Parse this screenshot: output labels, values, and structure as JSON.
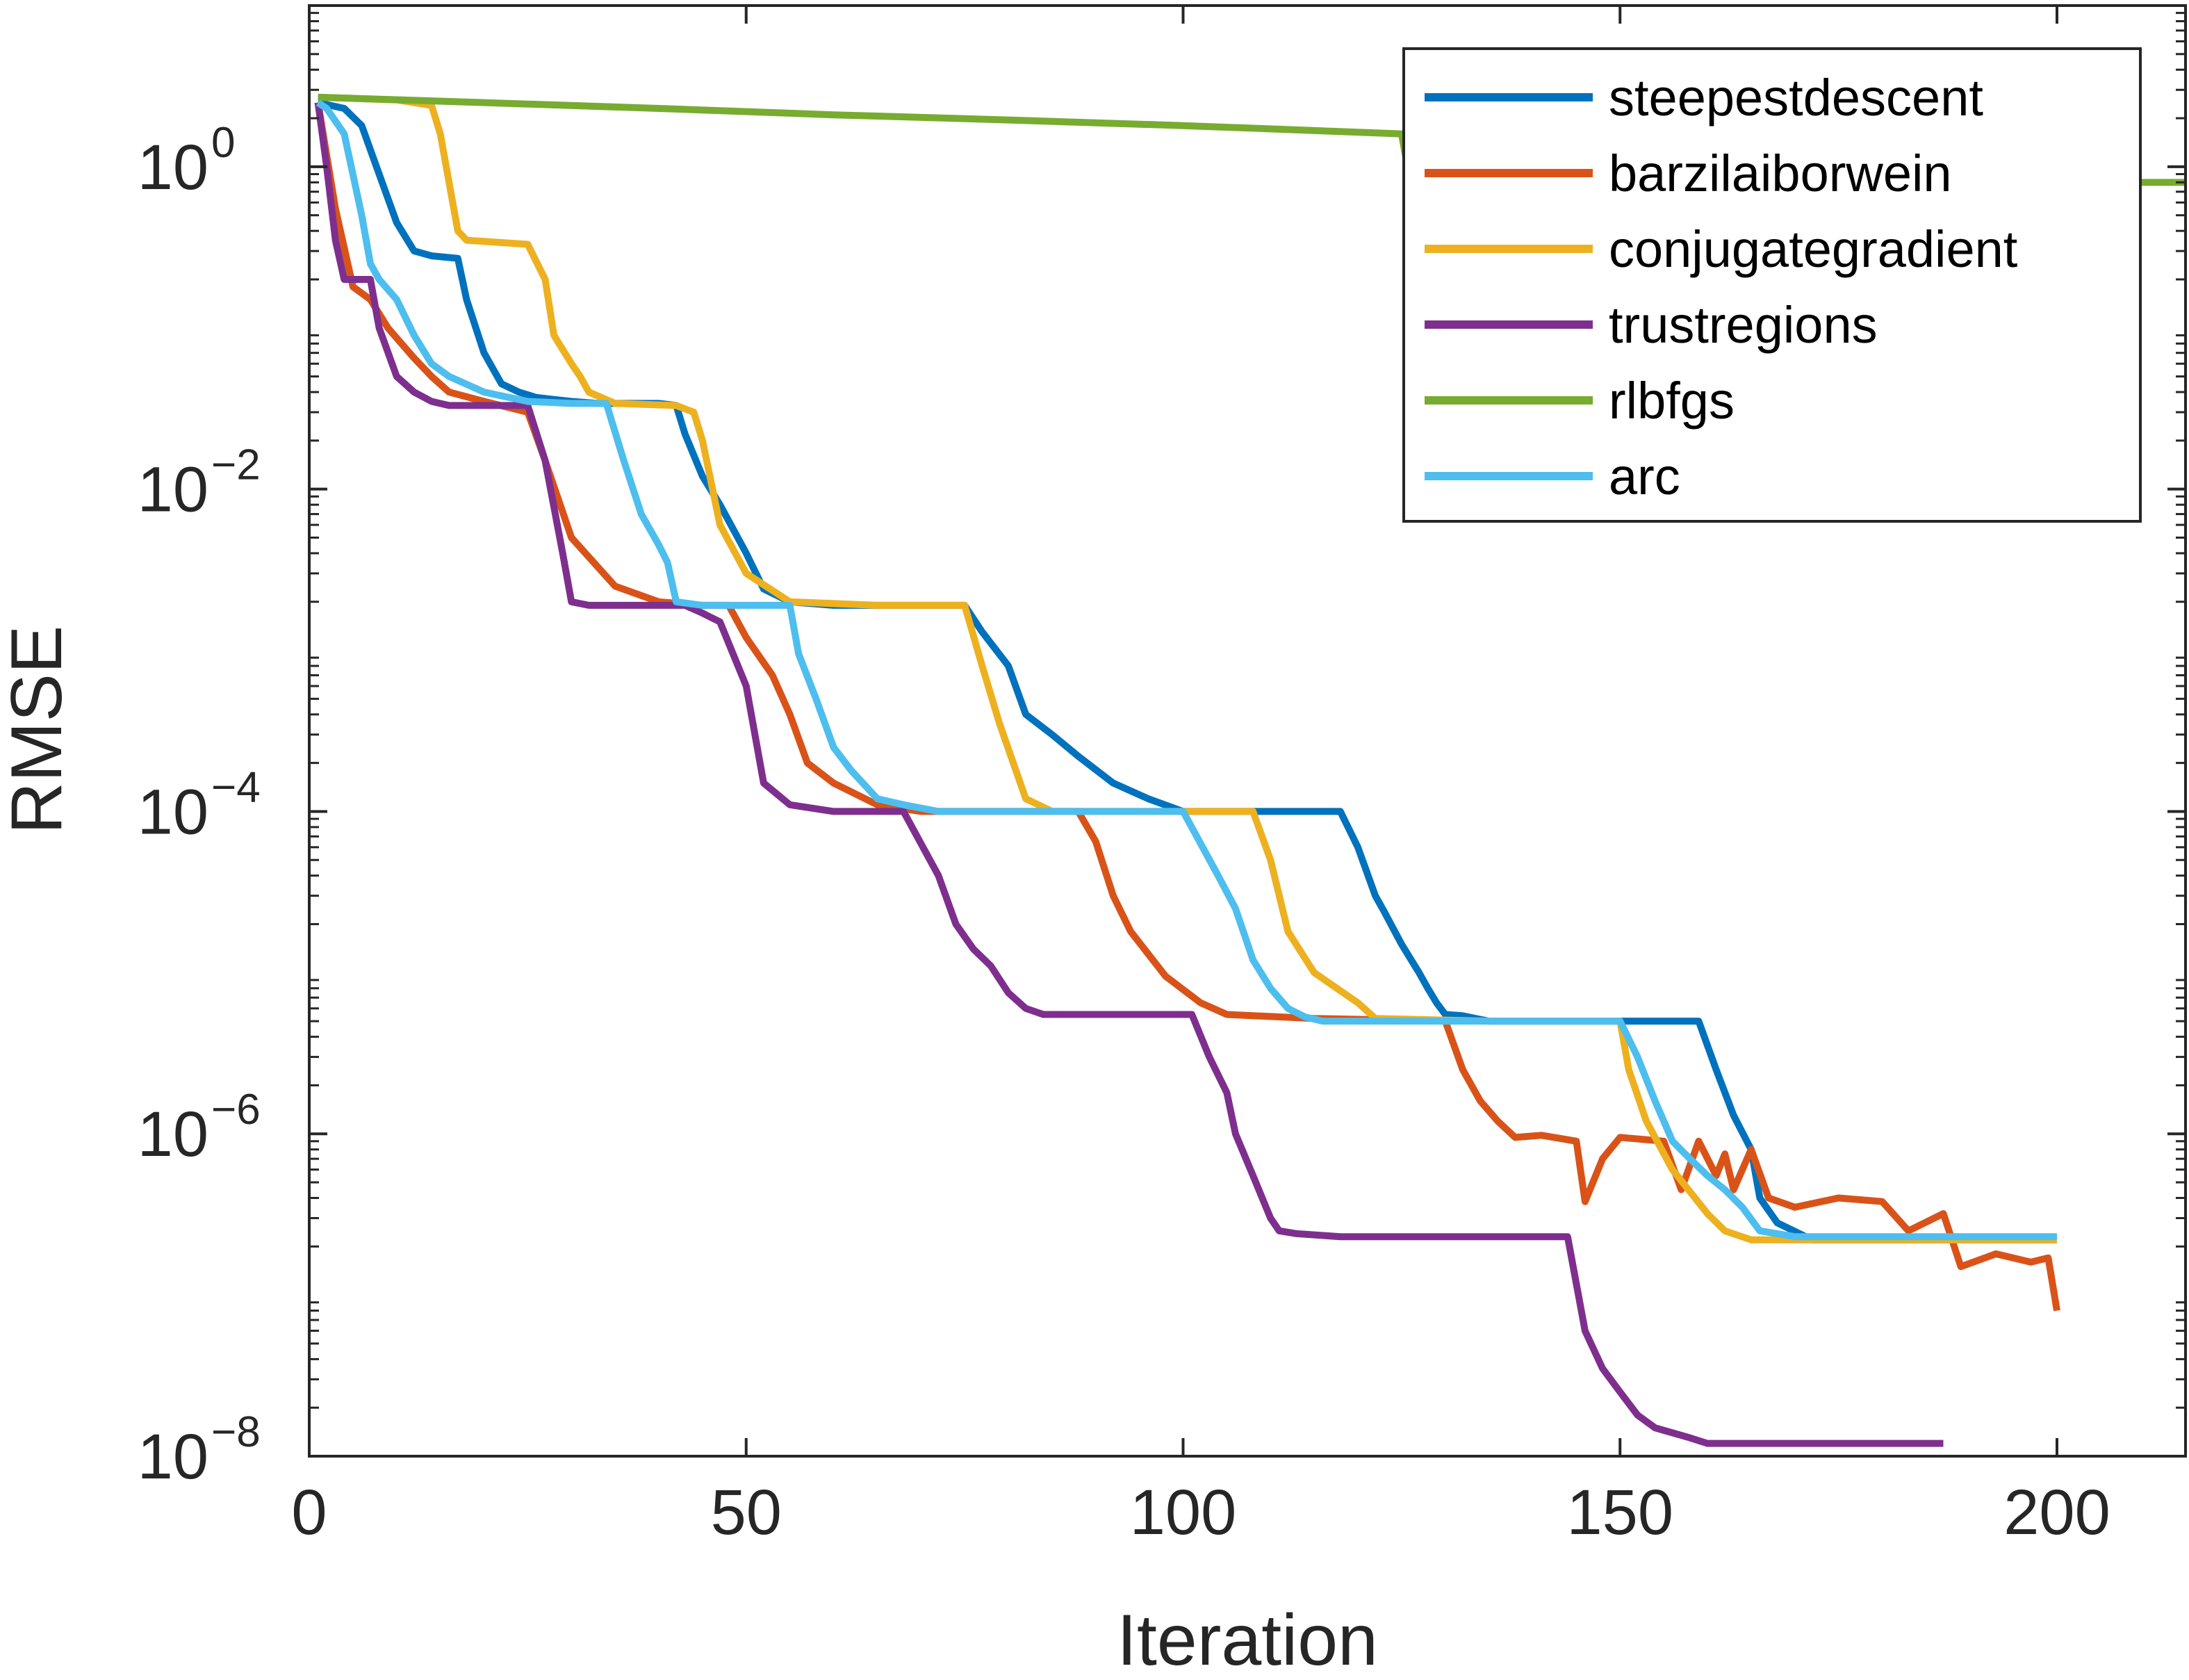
{
  "chart_data": {
    "type": "line",
    "title": "",
    "xlabel": "Iteration",
    "ylabel": "RMSE",
    "xscale": "linear",
    "yscale": "log",
    "xlim": [
      0,
      215
    ],
    "ylim": [
      1e-08,
      10
    ],
    "xticks": [
      0,
      50,
      100,
      150,
      200
    ],
    "xtick_labels": [
      "0",
      "50",
      "100",
      "150",
      "200"
    ],
    "yticks": [
      1e-08,
      1e-06,
      0.0001,
      0.01,
      1
    ],
    "ytick_labels": [
      {
        "base": "10",
        "exp": "−8"
      },
      {
        "base": "10",
        "exp": "−6"
      },
      {
        "base": "10",
        "exp": "−4"
      },
      {
        "base": "10",
        "exp": "−2"
      },
      {
        "base": "10",
        "exp": "0"
      }
    ],
    "grid": false,
    "legend_position": "top-right",
    "series": [
      {
        "name": "steepestdescent",
        "color": "#0072BD",
        "x": [
          1,
          4,
          6,
          8,
          10,
          12,
          14,
          17,
          18,
          20,
          22,
          24,
          26,
          28,
          30,
          33,
          40,
          42,
          43,
          45,
          47,
          50,
          52,
          55,
          60,
          68,
          71,
          75,
          77,
          80,
          82,
          85,
          88,
          92,
          96,
          100,
          105,
          110,
          115,
          118,
          120,
          122,
          123,
          125,
          127,
          128,
          129,
          130,
          132,
          135,
          145,
          155,
          159,
          161,
          163,
          165,
          166,
          168,
          172,
          200
        ],
        "y": [
          2.5,
          2.3,
          1.8,
          0.9,
          0.45,
          0.3,
          0.28,
          0.27,
          0.15,
          0.07,
          0.045,
          0.04,
          0.037,
          0.036,
          0.035,
          0.034,
          0.034,
          0.033,
          0.022,
          0.012,
          0.008,
          0.004,
          0.0024,
          0.002,
          0.0019,
          0.0019,
          0.0019,
          0.0019,
          0.0013,
          0.0008,
          0.0004,
          0.0003,
          0.00022,
          0.00015,
          0.00012,
          0.0001,
          0.0001,
          0.0001,
          0.0001,
          0.0001,
          6e-05,
          3e-05,
          2.4e-05,
          1.5e-05,
          1e-05,
          8e-06,
          6.5e-06,
          5.5e-06,
          5.4e-06,
          5e-06,
          5e-06,
          5e-06,
          5e-06,
          2.5e-06,
          1.3e-06,
          8e-07,
          4e-07,
          2.8e-07,
          2.2e-07,
          2.2e-07
        ]
      },
      {
        "name": "barzilaiborwein",
        "color": "#D95319",
        "x": [
          1,
          3,
          5,
          7,
          9,
          12,
          14,
          16,
          20,
          25,
          27,
          30,
          35,
          40,
          45,
          48,
          50,
          53,
          55,
          57,
          60,
          65,
          70,
          80,
          88,
          90,
          92,
          94,
          98,
          102,
          105,
          115,
          130,
          132,
          134,
          136,
          138,
          141,
          145,
          146,
          148,
          150,
          155,
          157,
          159,
          161,
          162,
          163,
          165,
          167,
          170,
          175,
          180,
          183,
          187,
          189,
          193,
          197,
          199,
          200
        ],
        "y": [
          2.5,
          0.55,
          0.18,
          0.15,
          0.1,
          0.065,
          0.05,
          0.04,
          0.035,
          0.03,
          0.015,
          0.005,
          0.0025,
          0.002,
          0.0019,
          0.0019,
          0.0012,
          0.0007,
          0.0004,
          0.0002,
          0.00015,
          0.00011,
          0.0001,
          0.0001,
          0.0001,
          6.5e-05,
          3e-05,
          1.8e-05,
          9.5e-06,
          6.5e-06,
          5.5e-06,
          5.2e-06,
          5e-06,
          2.5e-06,
          1.6e-06,
          1.2e-06,
          9.5e-07,
          9.8e-07,
          9e-07,
          3.8e-07,
          7e-07,
          9.5e-07,
          9e-07,
          4.5e-07,
          9e-07,
          5.5e-07,
          7.5e-07,
          4.5e-07,
          8e-07,
          4e-07,
          3.5e-07,
          4e-07,
          3.8e-07,
          2.5e-07,
          3.2e-07,
          1.5e-07,
          1.8e-07,
          1.6e-07,
          1.7e-07,
          8e-08
        ]
      },
      {
        "name": "conjugategradient",
        "color": "#EDB120",
        "x": [
          1,
          10,
          14,
          15,
          16,
          17,
          18,
          25,
          27,
          28,
          30,
          31,
          32,
          35,
          42,
          44,
          45,
          47,
          50,
          55,
          65,
          75,
          77,
          79,
          82,
          85,
          108,
          110,
          112,
          115,
          120,
          122,
          135,
          150,
          151,
          153,
          156,
          160,
          162,
          165,
          200
        ],
        "y": [
          2.7,
          2.6,
          2.4,
          1.6,
          0.8,
          0.4,
          0.35,
          0.33,
          0.2,
          0.09,
          0.06,
          0.05,
          0.04,
          0.034,
          0.033,
          0.03,
          0.02,
          0.006,
          0.003,
          0.002,
          0.0019,
          0.0019,
          0.0008,
          0.00035,
          0.00012,
          0.0001,
          0.0001,
          5e-05,
          1.8e-05,
          1e-05,
          6.5e-06,
          5.2e-06,
          5e-06,
          5e-06,
          2.5e-06,
          1.2e-06,
          6e-07,
          3.2e-07,
          2.5e-07,
          2.2e-07,
          2.2e-07
        ]
      },
      {
        "name": "trustregions",
        "color": "#7E2F8E",
        "x": [
          1,
          2,
          3,
          4,
          7,
          8,
          10,
          12,
          14,
          16,
          20,
          25,
          27,
          29,
          30,
          32,
          34,
          36,
          38,
          40,
          43,
          45,
          47,
          50,
          52,
          55,
          60,
          68,
          72,
          74,
          76,
          78,
          80,
          82,
          84,
          86,
          88,
          95,
          101,
          103,
          105,
          106,
          108,
          110,
          111,
          113,
          118,
          126,
          138,
          144,
          146,
          148,
          150,
          152,
          154,
          158,
          160,
          165,
          170,
          175,
          187
        ],
        "y": [
          2.5,
          1.0,
          0.35,
          0.2,
          0.2,
          0.1,
          0.05,
          0.04,
          0.035,
          0.033,
          0.033,
          0.033,
          0.015,
          0.004,
          0.002,
          0.0019,
          0.0019,
          0.0019,
          0.0019,
          0.0019,
          0.0019,
          0.0017,
          0.0015,
          0.0006,
          0.00015,
          0.00011,
          0.0001,
          0.0001,
          4e-05,
          2e-05,
          1.4e-05,
          1.1e-05,
          7.5e-06,
          6e-06,
          5.5e-06,
          5.5e-06,
          5.5e-06,
          5.5e-06,
          5.5e-06,
          3e-06,
          1.8e-06,
          1e-06,
          5.5e-07,
          3e-07,
          2.5e-07,
          2.4e-07,
          2.3e-07,
          2.3e-07,
          2.3e-07,
          2.3e-07,
          6e-08,
          3.5e-08,
          2.5e-08,
          1.8e-08,
          1.5e-08,
          1.3e-08,
          1.2e-08,
          1.2e-08,
          1.2e-08,
          1.2e-08,
          1.2e-08
        ]
      },
      {
        "name": "rlbfgs",
        "color": "#77AC30",
        "x": [
          1,
          20,
          40,
          60,
          80,
          100,
          125,
          126,
          215
        ],
        "y": [
          2.7,
          2.5,
          2.3,
          2.1,
          1.95,
          1.8,
          1.6,
          0.8,
          0.8
        ]
      },
      {
        "name": "arc",
        "color": "#4DBEEE",
        "x": [
          1,
          2,
          4,
          6,
          7,
          8,
          10,
          12,
          14,
          16,
          20,
          25,
          30,
          34,
          36,
          38,
          40,
          41,
          42,
          45,
          50,
          55,
          56,
          58,
          60,
          62,
          65,
          68,
          72,
          80,
          100,
          104,
          106,
          108,
          110,
          112,
          114,
          116,
          120,
          130,
          140,
          150,
          152,
          154,
          156,
          158,
          160,
          162,
          164,
          166,
          170,
          200
        ],
        "y": [
          2.5,
          2.3,
          1.6,
          0.5,
          0.25,
          0.2,
          0.15,
          0.09,
          0.06,
          0.05,
          0.04,
          0.035,
          0.034,
          0.034,
          0.015,
          0.007,
          0.0045,
          0.0035,
          0.002,
          0.0019,
          0.0019,
          0.0019,
          0.00095,
          0.0005,
          0.00025,
          0.00018,
          0.00012,
          0.00011,
          0.0001,
          0.0001,
          0.0001,
          4e-05,
          2.5e-05,
          1.2e-05,
          8e-06,
          6e-06,
          5.3e-06,
          5e-06,
          5e-06,
          5e-06,
          5e-06,
          5e-06,
          3e-06,
          1.6e-06,
          9e-07,
          7e-07,
          5.5e-07,
          4.5e-07,
          3.5e-07,
          2.5e-07,
          2.3e-07,
          2.3e-07
        ]
      }
    ]
  }
}
